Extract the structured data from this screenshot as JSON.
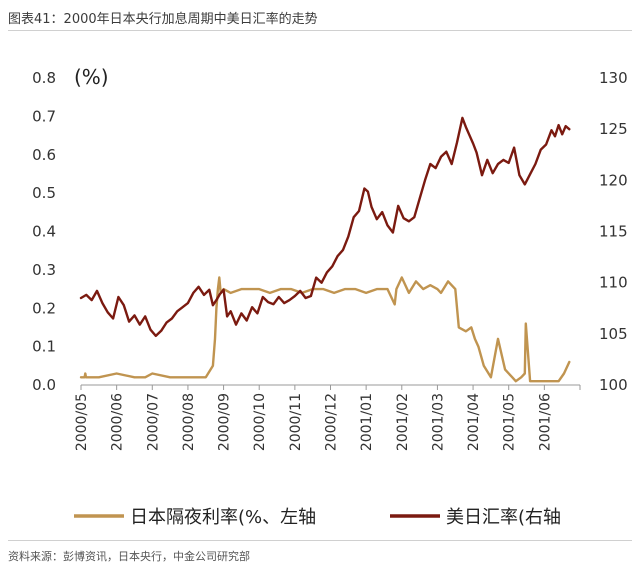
{
  "header": {
    "title": "图表41：2000年日本央行加息周期中美日汇率的走势"
  },
  "footer": {
    "source": "资料来源：彭博资讯，日本央行，中金公司研究部"
  },
  "colors": {
    "rate": "#C09450",
    "fx": "#7B1A10",
    "axis": "#999999"
  },
  "chart_data": {
    "type": "line",
    "unit_label": "(%)",
    "x_categories": [
      "2000/05",
      "2000/06",
      "2000/07",
      "2000/08",
      "2000/09",
      "2000/10",
      "2000/11",
      "2000/12",
      "2001/01",
      "2001/02",
      "2001/03",
      "2001/04",
      "2001/05",
      "2001/06"
    ],
    "left_axis": {
      "ylim": [
        0,
        0.8
      ],
      "ticks": [
        "0.0",
        "0.1",
        "0.2",
        "0.3",
        "0.4",
        "0.5",
        "0.6",
        "0.7",
        "0.8"
      ]
    },
    "right_axis": {
      "ylim": [
        100,
        130
      ],
      "ticks": [
        "100",
        "105",
        "110",
        "115",
        "120",
        "125",
        "130"
      ]
    },
    "legend": [
      "日本隔夜利率(%、左轴",
      "美日汇率(右轴"
    ],
    "series": [
      {
        "name": "日本隔夜利率(%、左轴",
        "axis": "left",
        "x": [
          0.0,
          0.1,
          0.12,
          0.14,
          0.5,
          1.0,
          1.5,
          1.8,
          2.0,
          2.5,
          3.0,
          3.5,
          3.7,
          3.76,
          3.8,
          3.84,
          3.88,
          3.92,
          4.0,
          4.2,
          4.5,
          4.8,
          5.0,
          5.3,
          5.6,
          5.9,
          6.2,
          6.5,
          6.8,
          7.1,
          7.4,
          7.7,
          8.0,
          8.3,
          8.6,
          8.8,
          8.85,
          9.0,
          9.2,
          9.4,
          9.6,
          9.8,
          10.0,
          10.1,
          10.3,
          10.5,
          10.6,
          10.8,
          10.95,
          11.05,
          11.15,
          11.3,
          11.5,
          11.7,
          11.9,
          12.1,
          12.2,
          12.35,
          12.45,
          12.48,
          12.6,
          12.8,
          13.0,
          13.2,
          13.4,
          13.55,
          13.7
        ],
        "values": [
          0.02,
          0.02,
          0.03,
          0.02,
          0.02,
          0.03,
          0.02,
          0.02,
          0.03,
          0.02,
          0.02,
          0.02,
          0.05,
          0.12,
          0.2,
          0.25,
          0.28,
          0.24,
          0.25,
          0.24,
          0.25,
          0.25,
          0.25,
          0.24,
          0.25,
          0.25,
          0.24,
          0.25,
          0.25,
          0.24,
          0.25,
          0.25,
          0.24,
          0.25,
          0.25,
          0.21,
          0.25,
          0.28,
          0.24,
          0.27,
          0.25,
          0.26,
          0.25,
          0.24,
          0.27,
          0.25,
          0.15,
          0.14,
          0.15,
          0.12,
          0.1,
          0.05,
          0.02,
          0.12,
          0.04,
          0.02,
          0.01,
          0.02,
          0.03,
          0.16,
          0.01,
          0.01,
          0.01,
          0.01,
          0.01,
          0.03,
          0.06
        ]
      },
      {
        "name": "美日汇率(右轴",
        "axis": "right",
        "x": [
          0.0,
          0.15,
          0.3,
          0.45,
          0.6,
          0.75,
          0.9,
          1.05,
          1.2,
          1.35,
          1.5,
          1.65,
          1.8,
          1.95,
          2.1,
          2.25,
          2.4,
          2.55,
          2.7,
          2.85,
          3.0,
          3.15,
          3.3,
          3.45,
          3.6,
          3.7,
          3.8,
          3.9,
          4.0,
          4.1,
          4.2,
          4.35,
          4.5,
          4.65,
          4.8,
          4.95,
          5.1,
          5.25,
          5.4,
          5.55,
          5.7,
          5.85,
          6.0,
          6.15,
          6.3,
          6.45,
          6.6,
          6.75,
          6.9,
          7.05,
          7.2,
          7.35,
          7.5,
          7.65,
          7.8,
          7.95,
          8.05,
          8.15,
          8.3,
          8.45,
          8.6,
          8.75,
          8.9,
          9.05,
          9.2,
          9.35,
          9.5,
          9.65,
          9.8,
          9.95,
          10.1,
          10.25,
          10.4,
          10.55,
          10.7,
          10.8,
          10.9,
          11.0,
          11.1,
          11.25,
          11.4,
          11.55,
          11.7,
          11.85,
          12.0,
          12.15,
          12.3,
          12.45,
          12.6,
          12.75,
          12.9,
          13.05,
          13.2,
          13.3,
          13.4,
          13.5,
          13.6,
          13.7
        ],
        "values": [
          108.5,
          108.8,
          108.3,
          109.2,
          108.0,
          107.1,
          106.5,
          108.6,
          107.8,
          106.2,
          106.8,
          105.9,
          106.7,
          105.4,
          104.8,
          105.3,
          106.1,
          106.5,
          107.2,
          107.6,
          108.0,
          109.0,
          109.6,
          108.8,
          109.3,
          107.8,
          108.3,
          108.9,
          109.3,
          106.7,
          107.2,
          105.9,
          107.0,
          106.3,
          107.6,
          107.0,
          108.6,
          108.1,
          107.9,
          108.6,
          108.0,
          108.3,
          108.7,
          109.2,
          108.5,
          108.7,
          110.5,
          110.0,
          111.0,
          111.6,
          112.6,
          113.2,
          114.5,
          116.4,
          117.0,
          119.2,
          118.9,
          117.4,
          116.2,
          116.9,
          115.6,
          114.9,
          117.5,
          116.3,
          116.0,
          116.4,
          118.2,
          120.0,
          121.6,
          121.2,
          122.3,
          122.8,
          121.6,
          123.7,
          126.1,
          125.2,
          124.4,
          123.6,
          122.7,
          120.5,
          122.0,
          120.7,
          121.6,
          122.0,
          121.7,
          123.2,
          120.5,
          119.6,
          120.6,
          121.6,
          123.0,
          123.5,
          124.9,
          124.3,
          125.4,
          124.5,
          125.3,
          125.0
        ]
      }
    ]
  }
}
